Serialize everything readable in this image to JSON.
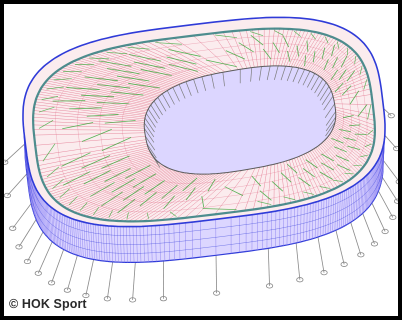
{
  "copyright": {
    "text": "© HOK Sport"
  },
  "colors": {
    "background": "#ffffff",
    "frame": "#000000",
    "roof_edge": "#2f3bd8",
    "cladding": "#8d82f0",
    "membrane_lines": "#e06b86",
    "bracing": "#39a83a",
    "compression_ring": "#2e7d7d",
    "masts": "#8a8a8a",
    "inner_cables": "#7d7d7d"
  },
  "diagram": {
    "subject": "stadium-roof-structure",
    "view": "isometric",
    "elements": [
      "roof-edge",
      "facade-cladding",
      "roof-membrane",
      "bracing",
      "compression-ring",
      "inner-tension-ring",
      "foundation-masts"
    ]
  }
}
